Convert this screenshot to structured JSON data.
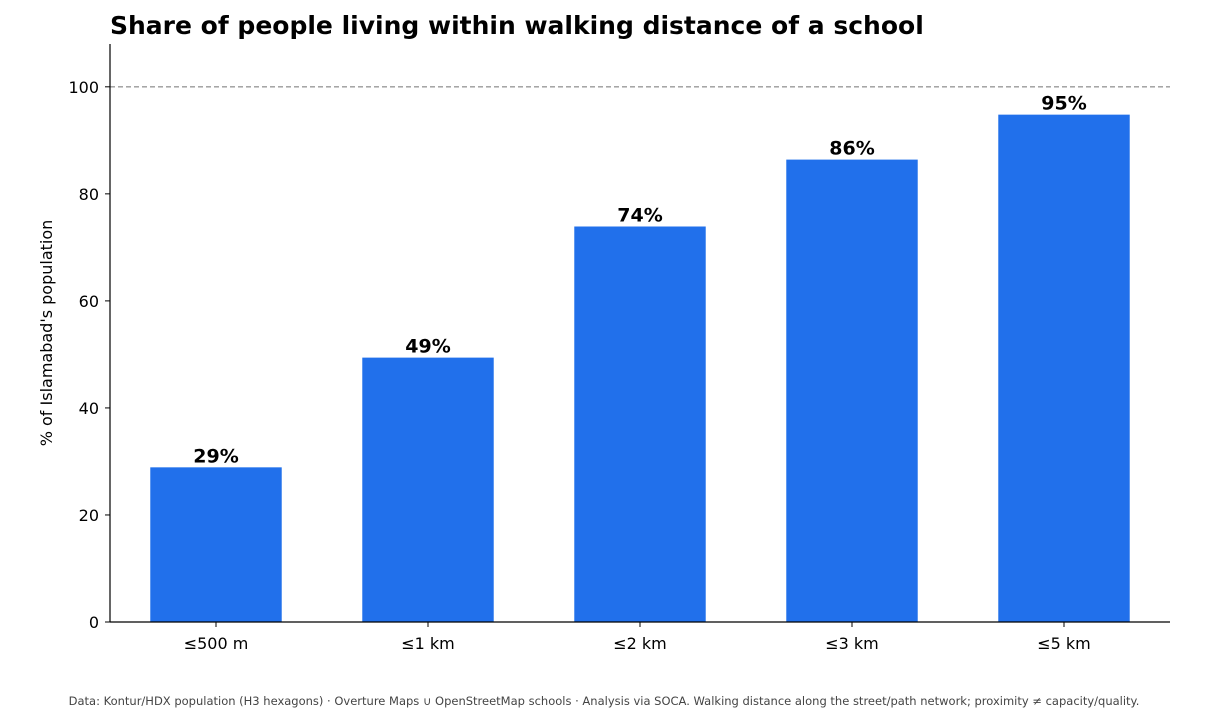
{
  "chart_data": {
    "type": "bar",
    "title": "Share of people living within walking distance of a school",
    "ylabel": "% of Islamabad's population",
    "xlabel": "",
    "categories": [
      "≤500 m",
      "≤1 km",
      "≤2 km",
      "≤3 km",
      "≤5 km"
    ],
    "values": [
      28.9,
      49.4,
      73.9,
      86.4,
      94.8
    ],
    "data_labels": [
      "29%",
      "49%",
      "74%",
      "86%",
      "95%"
    ],
    "ylim": [
      0,
      108
    ],
    "yticks": [
      0,
      20,
      40,
      60,
      80,
      100
    ],
    "reference_line": {
      "value": 100,
      "style": "dashed"
    },
    "bar_color": "#2170eb",
    "grid": false,
    "footer": "Data: Kontur/HDX population (H3 hexagons) · Overture Maps ∪ OpenStreetMap schools · Analysis via SOCA. Walking distance along the street/path network; proximity ≠ capacity/quality."
  }
}
